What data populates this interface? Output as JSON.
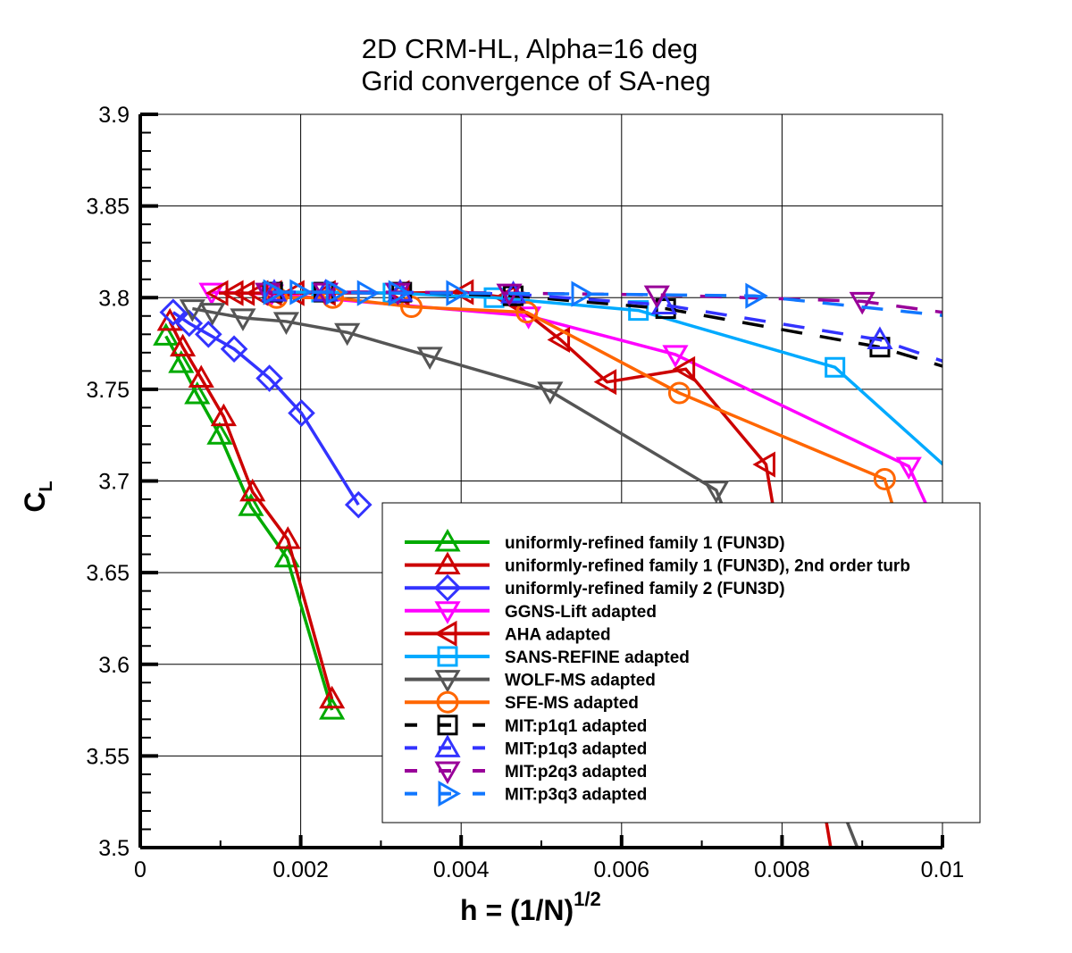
{
  "chart_data": {
    "type": "line",
    "title": [
      "2D CRM-HL, Alpha=16 deg",
      "Grid convergence of SA-neg"
    ],
    "xlabel": "h = (1/N)",
    "xlabel_superscript": "1/2",
    "ylabel": "C",
    "ylabel_subscript": "L",
    "xlim": [
      0,
      0.01
    ],
    "ylim": [
      3.5,
      3.9
    ],
    "xticks": [
      "0",
      "0.002",
      "0.004",
      "0.006",
      "0.008",
      "0.01"
    ],
    "yticks": [
      "3.5",
      "3.55",
      "3.6",
      "3.65",
      "3.7",
      "3.75",
      "3.8",
      "3.85",
      "3.9"
    ],
    "grid": true,
    "legend_position": "lower-right",
    "series": [
      {
        "name": "uniformly-refined family 1 (FUN3D)",
        "color": "#00aa00",
        "marker": "triangle-up",
        "dash": false,
        "x": [
          0.00032,
          0.00051,
          0.00071,
          0.00099,
          0.00138,
          0.00183,
          0.00239
        ],
        "y": [
          3.779,
          3.764,
          3.747,
          3.725,
          3.686,
          3.658,
          3.575
        ]
      },
      {
        "name": "uniformly-refined family 1 (FUN3D), 2nd order turb",
        "color": "#cc0000",
        "marker": "triangle-up",
        "dash": false,
        "x": [
          0.00037,
          0.00053,
          0.00076,
          0.00104,
          0.0014,
          0.00184,
          0.00239
        ],
        "y": [
          3.787,
          3.773,
          3.756,
          3.735,
          3.694,
          3.668,
          3.581
        ]
      },
      {
        "name": "uniformly-refined family 2 (FUN3D)",
        "color": "#3333ff",
        "marker": "diamond",
        "dash": false,
        "x": [
          0.00041,
          0.00061,
          0.00085,
          0.00117,
          0.00161,
          0.00201,
          0.00272
        ],
        "y": [
          3.792,
          3.786,
          3.78,
          3.772,
          3.756,
          3.737,
          3.687
        ]
      },
      {
        "name": "GGNS-Lift adapted",
        "color": "#ff00ff",
        "marker": "triangle-down",
        "dash": false,
        "x": [
          0.00089,
          0.00163,
          0.00484,
          0.00667,
          0.00958,
          0.0105
        ],
        "y": [
          3.803,
          3.802,
          3.79,
          3.769,
          3.708,
          3.62
        ]
      },
      {
        "name": "AHA adapted",
        "color": "#cc0000",
        "marker": "triangle-left",
        "dash": false,
        "x": [
          0.00098,
          0.00117,
          0.00131,
          0.00148,
          0.00165,
          0.00193,
          0.00232,
          0.00324,
          0.00404,
          0.00457,
          0.00524,
          0.00582,
          0.0068,
          0.0078,
          0.0088
        ],
        "y": [
          3.8025,
          3.8025,
          3.8025,
          3.8025,
          3.8025,
          3.8025,
          3.8025,
          3.8025,
          3.803,
          3.8,
          3.777,
          3.754,
          3.761,
          3.709,
          3.45
        ]
      },
      {
        "name": "SANS-REFINE adapted",
        "color": "#00aaff",
        "marker": "square",
        "dash": false,
        "x": [
          0.00165,
          0.00226,
          0.00315,
          0.00441,
          0.00621,
          0.00866,
          0.011
        ],
        "y": [
          3.803,
          3.803,
          3.8025,
          3.8,
          3.793,
          3.762,
          3.67
        ]
      },
      {
        "name": "WOLF-MS adapted",
        "color": "#555555",
        "marker": "triangle-down",
        "dash": false,
        "x": [
          0.00065,
          0.0009,
          0.00128,
          0.00182,
          0.00258,
          0.00361,
          0.00511,
          0.00718,
          0.0093
        ],
        "y": [
          3.794,
          3.792,
          3.789,
          3.787,
          3.781,
          3.768,
          3.749,
          3.695,
          3.46
        ]
      },
      {
        "name": "SFE-MS adapted",
        "color": "#ff6600",
        "marker": "circle",
        "dash": false,
        "x": [
          0.0017,
          0.0024,
          0.00338,
          0.00482,
          0.00672,
          0.00928,
          0.0097
        ],
        "y": [
          3.8,
          3.8,
          3.795,
          3.792,
          3.748,
          3.701,
          3.64
        ]
      },
      {
        "name": "MIT:p1q1 adapted",
        "color": "#000000",
        "marker": "square",
        "dash": true,
        "x": [
          0.00165,
          0.00229,
          0.00326,
          0.00465,
          0.00655,
          0.00922,
          0.0105
        ],
        "y": [
          3.803,
          3.803,
          3.803,
          3.801,
          3.794,
          3.773,
          3.756
        ]
      },
      {
        "name": "MIT:p1q3 adapted",
        "color": "#3333ff",
        "marker": "triangle-up",
        "dash": true,
        "x": [
          0.00167,
          0.00231,
          0.00324,
          0.00465,
          0.00653,
          0.00922,
          0.0105
        ],
        "y": [
          3.803,
          3.803,
          3.803,
          3.802,
          3.796,
          3.777,
          3.758
        ]
      },
      {
        "name": "MIT:p2q3 adapted",
        "color": "#990099",
        "marker": "triangle-down",
        "dash": true,
        "x": [
          0.00159,
          0.00231,
          0.00321,
          0.0046,
          0.00644,
          0.009,
          0.0105
        ],
        "y": [
          3.803,
          3.803,
          3.803,
          3.8025,
          3.8015,
          3.798,
          3.789
        ]
      },
      {
        "name": "MIT:p3q3 adapted",
        "color": "#1177ff",
        "marker": "triangle-right",
        "dash": true,
        "x": [
          0.00165,
          0.00198,
          0.00243,
          0.00282,
          0.00321,
          0.00393,
          0.00549,
          0.00766,
          0.0105
        ],
        "y": [
          3.803,
          3.803,
          3.803,
          3.8025,
          3.8025,
          3.8025,
          3.802,
          3.801,
          3.788
        ]
      }
    ]
  }
}
